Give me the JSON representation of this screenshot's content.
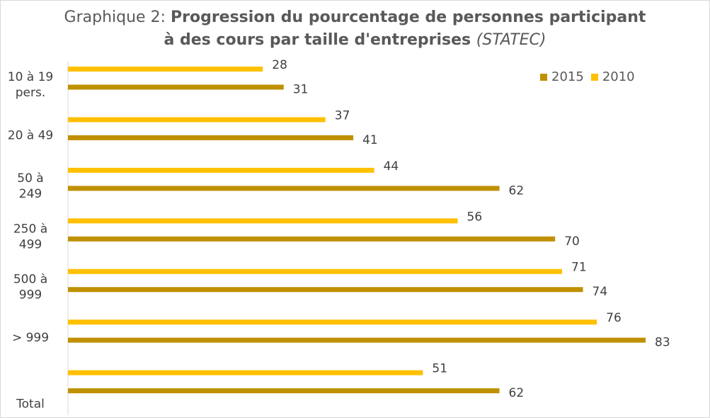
{
  "title": {
    "prefix": "Graphique 2: ",
    "line1_bold": "Progression du pourcentage de personnes participant",
    "line2_bold": "à des cours par taille d'entreprises ",
    "line2_italic": "(STATEC)"
  },
  "chart_data": {
    "type": "bar",
    "orientation": "horizontal",
    "categories": [
      "10 à 19 pers.",
      "20 à 49",
      "50 à 249",
      "250 à 499",
      "500 à 999",
      "> 999",
      "Total"
    ],
    "series": [
      {
        "name": "2015",
        "color": "#BF9000",
        "values": [
          31,
          41,
          62,
          70,
          74,
          83,
          62
        ]
      },
      {
        "name": "2010",
        "color": "#FFC000",
        "values": [
          28,
          37,
          44,
          56,
          71,
          76,
          51
        ]
      }
    ],
    "xlim": [
      0,
      83
    ],
    "legend_position": "top-right",
    "grid": false,
    "data_labels": true
  }
}
